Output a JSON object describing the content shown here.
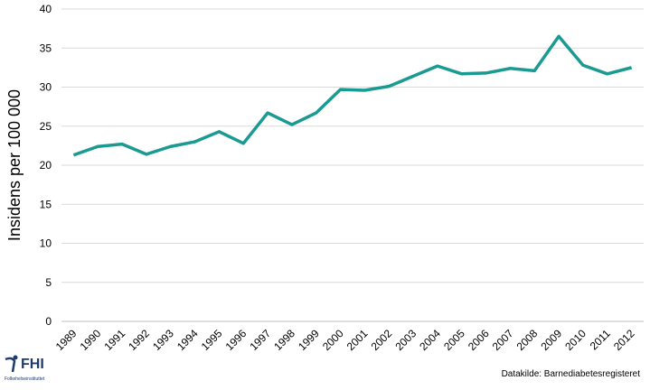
{
  "chart_data": {
    "type": "line",
    "title": "",
    "xlabel": "",
    "ylabel": "Insidens per 100 000",
    "ylim": [
      0,
      40
    ],
    "yticks": [
      0,
      5,
      10,
      15,
      20,
      25,
      30,
      35,
      40
    ],
    "grid": true,
    "line_color": "#1a9a92",
    "categories": [
      "1989",
      "1990",
      "1991",
      "1992",
      "1993",
      "1994",
      "1995",
      "1996",
      "1997",
      "1998",
      "1999",
      "2000",
      "2001",
      "2002",
      "2003",
      "2004",
      "2005",
      "2006",
      "2007",
      "2008",
      "2009",
      "2010",
      "2011",
      "2012"
    ],
    "values": [
      21.3,
      22.4,
      22.7,
      21.4,
      22.4,
      23.0,
      24.3,
      22.8,
      26.7,
      25.2,
      26.7,
      29.7,
      29.6,
      30.1,
      31.4,
      32.7,
      31.7,
      31.8,
      32.4,
      32.1,
      36.5,
      32.8,
      31.7,
      32.5
    ]
  },
  "footer": {
    "source": "Datakilde: Barnediabetesregisteret",
    "logo_text": "FHI",
    "logo_subtext": "Folkehelseinstituttet"
  }
}
